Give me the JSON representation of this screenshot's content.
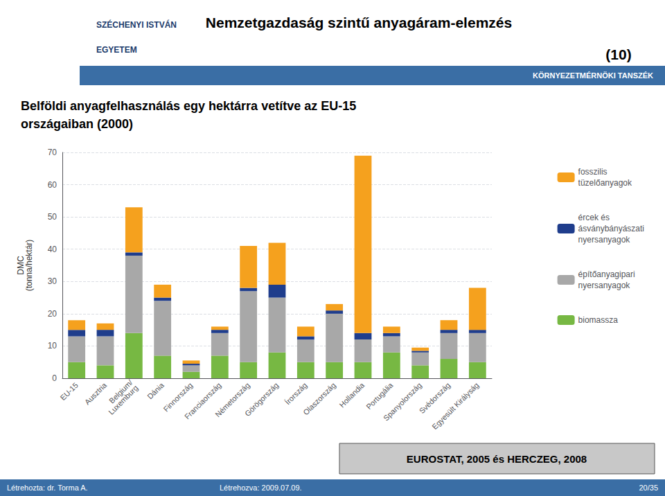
{
  "chart_data": {
    "type": "bar",
    "stacked": true,
    "title": "Belföldi anyagfelhasználás egy hektárra vetítve az EU-15\nországaiban (2000)",
    "ylabel": "DMC\n(tonna/hektár)",
    "categories": [
      "EU-15",
      "Ausztria",
      "Belgium/\nLuxemburg",
      "Dánia",
      "Finnország",
      "Franciaország",
      "Németország",
      "Görögország",
      "Írország",
      "Olaszország",
      "Hollandia",
      "Portugália",
      "Spanyolország",
      "Svédország",
      "Egyesült Királyság"
    ],
    "series": [
      {
        "name": "biomassza",
        "color": "#77b843",
        "values": [
          5,
          4,
          14,
          7,
          2,
          7,
          5,
          8,
          5,
          5,
          5,
          8,
          4,
          6,
          5
        ]
      },
      {
        "name": "építőanyagipari\nnyersanyagok",
        "color": "#a8a8a8",
        "values": [
          8,
          9,
          24,
          17,
          2,
          7,
          22,
          17,
          7,
          15,
          7,
          5,
          4,
          8,
          9
        ]
      },
      {
        "name": "ércek és\násványbányászati\nnyersanyagok",
        "color": "#1f3d8c",
        "values": [
          2,
          2,
          1,
          1,
          0.5,
          1,
          1,
          4,
          1,
          1,
          2,
          1,
          0.5,
          1,
          1
        ]
      },
      {
        "name": "fosszilis\ntüzelőanyagok",
        "color": "#f5a11e",
        "values": [
          3,
          2,
          14,
          4,
          1,
          1,
          13,
          13,
          3,
          2,
          55,
          2,
          1,
          3,
          13
        ]
      }
    ],
    "ylim": [
      0,
      70
    ],
    "yticks": [
      0,
      10,
      20,
      30,
      40,
      50,
      60,
      70
    ],
    "grid": true,
    "legend": "right",
    "annotations": [
      "SZÉCHENYI ISTVÁN",
      "EGYETEM",
      "Nemzetgazdaság szintű anyagáram-elemzés",
      "(10)",
      "KÖRNYEZETMÉRNÖKI TANSZÉK",
      "EUROSTAT, 2005 és HERCZEG, 2008",
      "Létrehozta: dr. Torma A.",
      "Létrehozva: 2009.07.09.",
      "20/35"
    ]
  }
}
